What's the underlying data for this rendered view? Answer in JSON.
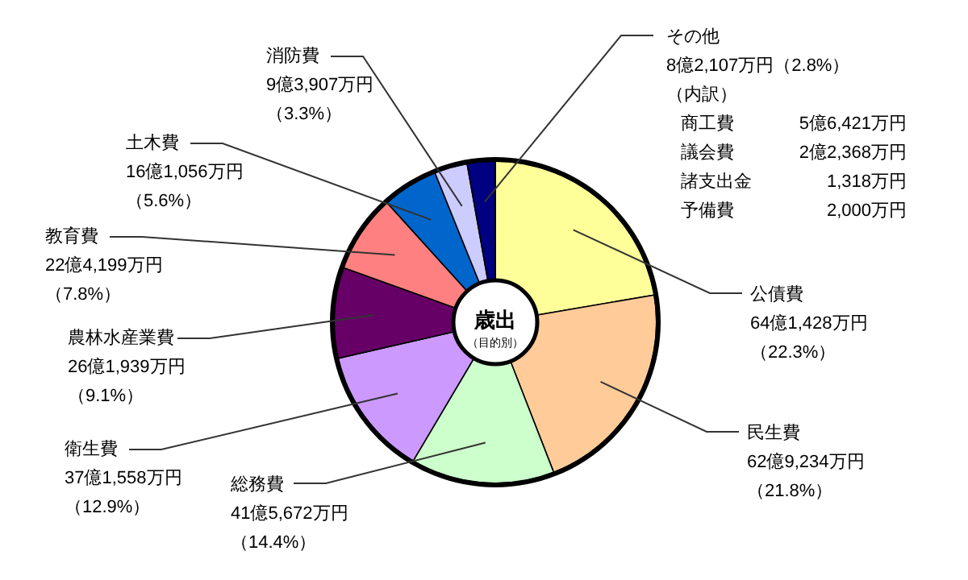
{
  "chart_data": {
    "type": "donut",
    "title": "歳出",
    "subtitle": "（目的別）",
    "categories": [
      "公債費",
      "民生費",
      "総務費",
      "衛生費",
      "農林水産業費",
      "教育費",
      "土木費",
      "消防費",
      "その他"
    ],
    "values": [
      22.3,
      21.8,
      14.4,
      12.9,
      9.1,
      7.8,
      5.6,
      3.3,
      2.8
    ],
    "colors": [
      "#ffff99",
      "#ffcc99",
      "#ccffcc",
      "#cc99ff",
      "#660066",
      "#ff8080",
      "#0066cc",
      "#ccccff",
      "#000080"
    ],
    "value_labels": [
      "64億1,428万円（22.3%）",
      "62億9,234万円（21.8%）",
      "41億5,672万円（14.4%）",
      "37億1,558万円（12.9%）",
      "26億1,939万円（9.1%）",
      "22億4,199万円（7.8%）",
      "16億1,056万円（5.6%）",
      "9億3,907万円（3.3%）",
      "8億2,107万円（2.8%）"
    ],
    "annotations": [
      "（内訳）",
      "商工費\t5億6,421万円",
      "議会費\t2億2,368万円",
      "諸支出金\t1,318万円",
      "予備費\t2,000万円"
    ]
  }
}
